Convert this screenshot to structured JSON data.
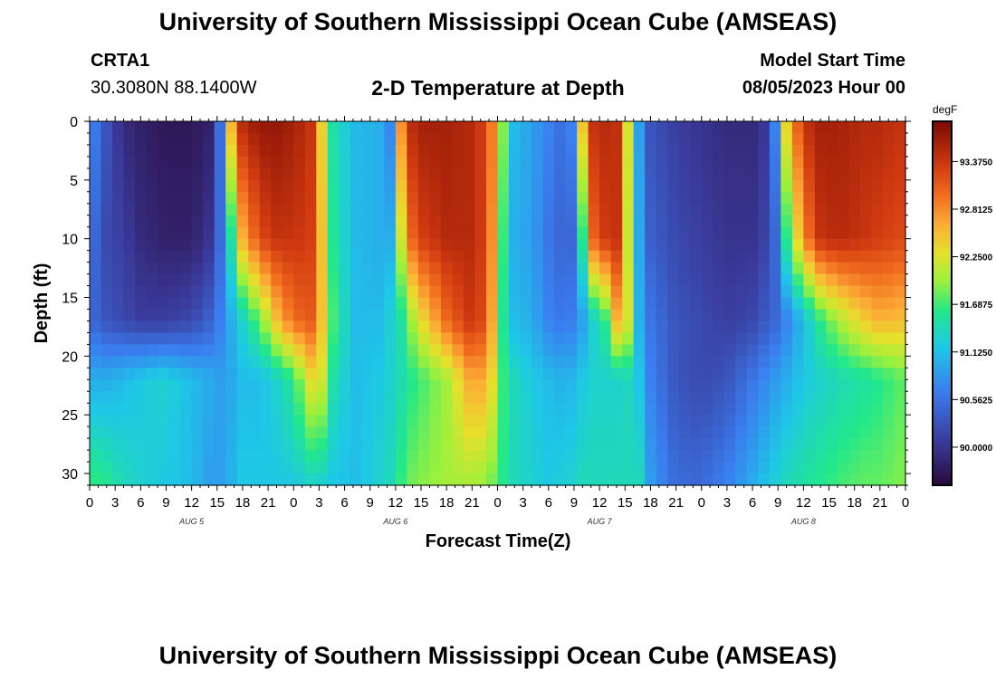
{
  "header": {
    "title": "University of Southern Mississippi Ocean Cube (AMSEAS)",
    "station_id": "CRTA1",
    "station_coords": "30.3080N  88.1400W",
    "plot_title": "2-D Temperature at Depth",
    "model_start_label": "Model Start Time",
    "model_start_value": "08/05/2023 Hour 00"
  },
  "footer": {
    "title": "University of Southern Mississippi Ocean Cube (AMSEAS)"
  },
  "chart_data": {
    "type": "heatmap",
    "title": "2-D Temperature at Depth",
    "xlabel": "Forecast Time(Z)",
    "ylabel": "Depth (ft)",
    "colorbar_label": "degF",
    "x_hours_range": [
      0,
      96
    ],
    "x_tick_labels": [
      "0",
      "3",
      "6",
      "9",
      "12",
      "15",
      "18",
      "21",
      "0",
      "3",
      "6",
      "9",
      "12",
      "15",
      "18",
      "21",
      "0",
      "3",
      "6",
      "9",
      "12",
      "15",
      "18",
      "21",
      "0",
      "3",
      "6",
      "9",
      "12",
      "15",
      "18",
      "21",
      "0"
    ],
    "day_labels": [
      "AUG 5",
      "AUG 6",
      "AUG 7",
      "AUG 8"
    ],
    "y_range_ft": [
      0,
      31
    ],
    "y_ticks": [
      0,
      5,
      10,
      15,
      20,
      25,
      30
    ],
    "colorbar_ticks": [
      "93.3750",
      "92.8125",
      "92.2500",
      "91.6875",
      "91.1250",
      "90.5625",
      "90.0000"
    ],
    "colorbar_range_degF": [
      89.55,
      93.85
    ],
    "cells_x": 72,
    "cells_y": 31,
    "note_depth_stops": [
      0,
      10,
      17,
      22,
      31
    ],
    "temperature_columns": [
      {
        "t": 0.0,
        "v": [
          90.8,
          90.6,
          90.5,
          91.0,
          91.7
        ]
      },
      {
        "t": 2.0,
        "v": [
          90.3,
          90.2,
          90.3,
          91.0,
          91.6
        ]
      },
      {
        "t": 4.0,
        "v": [
          89.9,
          90.1,
          90.2,
          91.1,
          91.4
        ]
      },
      {
        "t": 6.0,
        "v": [
          89.8,
          89.9,
          90.1,
          91.2,
          91.3
        ]
      },
      {
        "t": 9.0,
        "v": [
          89.7,
          89.8,
          90.1,
          91.3,
          91.2
        ]
      },
      {
        "t": 12.0,
        "v": [
          89.7,
          89.8,
          90.2,
          91.1,
          91.1
        ]
      },
      {
        "t": 14.0,
        "v": [
          89.8,
          90.0,
          90.4,
          91.0,
          90.9
        ]
      },
      {
        "t": 15.0,
        "v": [
          90.1,
          90.3,
          90.6,
          90.9,
          90.9
        ]
      },
      {
        "t": 16.0,
        "v": [
          91.4,
          90.9,
          90.8,
          90.9,
          90.9
        ]
      },
      {
        "t": 17.0,
        "v": [
          93.2,
          91.8,
          91.1,
          91.0,
          91.1
        ]
      },
      {
        "t": 18.0,
        "v": [
          93.5,
          92.6,
          91.3,
          91.1,
          91.2
        ]
      },
      {
        "t": 20.0,
        "v": [
          93.7,
          93.2,
          91.8,
          91.1,
          91.2
        ]
      },
      {
        "t": 22.0,
        "v": [
          93.7,
          93.4,
          92.5,
          91.3,
          91.2
        ]
      },
      {
        "t": 24.0,
        "v": [
          93.6,
          93.4,
          93.0,
          91.6,
          91.2
        ]
      },
      {
        "t": 26.0,
        "v": [
          93.4,
          93.3,
          93.1,
          92.3,
          91.3
        ]
      },
      {
        "t": 27.0,
        "v": [
          92.8,
          92.9,
          92.8,
          92.5,
          91.3
        ]
      },
      {
        "t": 28.0,
        "v": [
          91.6,
          91.7,
          91.9,
          91.6,
          91.2
        ]
      },
      {
        "t": 31.0,
        "v": [
          91.1,
          91.1,
          91.1,
          91.1,
          91.1
        ]
      },
      {
        "t": 34.0,
        "v": [
          91.0,
          91.0,
          91.1,
          91.2,
          91.3
        ]
      },
      {
        "t": 35.5,
        "v": [
          90.7,
          91.0,
          91.3,
          91.3,
          91.4
        ]
      },
      {
        "t": 36.0,
        "v": [
          91.2,
          91.2,
          91.3,
          91.3,
          91.5
        ]
      },
      {
        "t": 36.5,
        "v": [
          92.5,
          91.9,
          91.4,
          91.4,
          91.6
        ]
      },
      {
        "t": 37.0,
        "v": [
          93.4,
          92.8,
          91.7,
          91.5,
          91.8
        ]
      },
      {
        "t": 39.0,
        "v": [
          93.6,
          93.3,
          92.3,
          91.7,
          91.9
        ]
      },
      {
        "t": 42.0,
        "v": [
          93.6,
          93.5,
          93.0,
          92.0,
          92.0
        ]
      },
      {
        "t": 45.0,
        "v": [
          93.5,
          93.5,
          93.4,
          92.7,
          92.0
        ]
      },
      {
        "t": 47.0,
        "v": [
          93.2,
          93.2,
          93.1,
          92.6,
          91.9
        ]
      },
      {
        "t": 48.0,
        "v": [
          92.3,
          92.0,
          91.8,
          91.8,
          91.7
        ]
      },
      {
        "t": 50.0,
        "v": [
          91.1,
          91.0,
          91.1,
          91.4,
          91.4
        ]
      },
      {
        "t": 52.0,
        "v": [
          90.9,
          90.9,
          91.0,
          91.2,
          91.3
        ]
      },
      {
        "t": 54.0,
        "v": [
          90.7,
          90.6,
          90.7,
          91.1,
          91.2
        ]
      },
      {
        "t": 56.0,
        "v": [
          90.5,
          90.4,
          90.6,
          91.0,
          91.3
        ]
      },
      {
        "t": 57.0,
        "v": [
          90.8,
          90.5,
          90.7,
          91.1,
          91.3
        ]
      },
      {
        "t": 58.0,
        "v": [
          92.5,
          91.6,
          90.9,
          91.2,
          91.4
        ]
      },
      {
        "t": 59.0,
        "v": [
          93.4,
          93.0,
          91.2,
          91.3,
          91.4
        ]
      },
      {
        "t": 61.0,
        "v": [
          93.5,
          93.4,
          91.7,
          91.3,
          91.4
        ]
      },
      {
        "t": 62.5,
        "v": [
          93.4,
          93.4,
          93.0,
          91.3,
          91.4
        ]
      },
      {
        "t": 63.0,
        "v": [
          92.7,
          92.6,
          92.7,
          91.4,
          91.4
        ]
      },
      {
        "t": 64.0,
        "v": [
          91.3,
          91.3,
          91.3,
          91.3,
          91.4
        ]
      },
      {
        "t": 65.0,
        "v": [
          90.7,
          90.8,
          90.9,
          91.1,
          91.4
        ]
      },
      {
        "t": 66.0,
        "v": [
          90.3,
          90.4,
          90.6,
          90.7,
          90.9
        ]
      },
      {
        "t": 69.0,
        "v": [
          90.1,
          90.2,
          90.3,
          90.3,
          90.5
        ]
      },
      {
        "t": 72.0,
        "v": [
          90.0,
          90.1,
          90.2,
          90.2,
          90.5
        ]
      },
      {
        "t": 75.0,
        "v": [
          89.9,
          90.0,
          90.1,
          90.3,
          90.7
        ]
      },
      {
        "t": 78.0,
        "v": [
          89.9,
          90.0,
          90.2,
          90.6,
          91.0
        ]
      },
      {
        "t": 80.0,
        "v": [
          90.1,
          90.2,
          90.4,
          90.8,
          91.2
        ]
      },
      {
        "t": 81.0,
        "v": [
          91.0,
          90.6,
          90.5,
          90.9,
          91.3
        ]
      },
      {
        "t": 82.0,
        "v": [
          92.4,
          91.6,
          90.7,
          91.0,
          91.4
        ]
      },
      {
        "t": 84.0,
        "v": [
          93.4,
          92.8,
          91.1,
          91.2,
          91.5
        ]
      },
      {
        "t": 86.0,
        "v": [
          93.6,
          93.4,
          91.6,
          91.3,
          91.6
        ]
      },
      {
        "t": 88.0,
        "v": [
          93.6,
          93.5,
          92.0,
          91.4,
          91.7
        ]
      },
      {
        "t": 91.0,
        "v": [
          93.5,
          93.4,
          92.4,
          91.5,
          91.8
        ]
      },
      {
        "t": 93.0,
        "v": [
          93.5,
          93.3,
          92.6,
          91.6,
          91.8
        ]
      },
      {
        "t": 96.0,
        "v": [
          93.4,
          93.2,
          92.5,
          91.8,
          91.9
        ]
      }
    ]
  }
}
